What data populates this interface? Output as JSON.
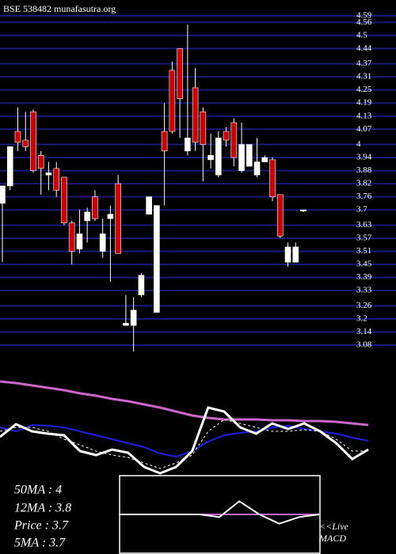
{
  "header": {
    "title": "BSE 538482 munafasutra.org"
  },
  "stats": [
    "50MA : 4",
    "12MA : 3.8",
    "Price : 3.7",
    "5MA : 3.7"
  ],
  "macd_label": [
    "<<Live",
    "MACD"
  ],
  "chart_data": [
    {
      "type": "candlestick",
      "up_color": "#ffffff",
      "down_color": "#cc0000",
      "grid": true,
      "grid_color": "#1a1a7a",
      "ylim": [
        3.08,
        4.59
      ],
      "yticks": [
        4.59,
        4.56,
        4.5,
        4.44,
        4.37,
        4.31,
        4.25,
        4.19,
        4.13,
        4.07,
        4,
        3.94,
        3.88,
        3.82,
        3.76,
        3.7,
        3.63,
        3.57,
        3.51,
        3.45,
        3.39,
        3.33,
        3.26,
        3.2,
        3.14,
        3.08
      ],
      "open": [
        3.73,
        3.81,
        4.06,
        4.02,
        4.15,
        3.95,
        3.86,
        3.89,
        3.85,
        3.64,
        3.52,
        3.65,
        3.76,
        3.51,
        3.66,
        3.82,
        3.17,
        3.17,
        3.31,
        3.68,
        3.23,
        4.06,
        4.34,
        4.44,
        3.97,
        4.26,
        4.15,
        3.93,
        3.86,
        4.06,
        4.1,
        3.88,
        3.9,
        3.86,
        3.92,
        3.93,
        3.77,
        3.46,
        3.46,
        3.7
      ],
      "high": [
        3.81,
        3.99,
        4.17,
        4.15,
        4.16,
        3.97,
        3.92,
        3.92,
        3.85,
        3.65,
        3.7,
        3.71,
        3.79,
        3.66,
        3.72,
        3.86,
        3.31,
        3.3,
        3.41,
        3.76,
        3.72,
        4.19,
        4.38,
        4.44,
        4.55,
        4.35,
        4.17,
        4.05,
        4.06,
        4.08,
        4.12,
        4.1,
        4.0,
        4.03,
        3.95,
        3.94,
        3.77,
        3.55,
        3.55,
        3.7
      ],
      "low": [
        3.46,
        3.79,
        3.97,
        3.97,
        3.87,
        3.77,
        3.79,
        3.76,
        3.63,
        3.45,
        3.5,
        3.55,
        3.65,
        3.48,
        3.37,
        3.5,
        3.17,
        3.05,
        3.3,
        3.68,
        3.23,
        3.72,
        4.05,
        4.03,
        3.95,
        3.97,
        3.83,
        3.89,
        3.85,
        3.99,
        3.9,
        3.87,
        3.9,
        3.85,
        3.92,
        3.74,
        3.57,
        3.44,
        3.46,
        3.69
      ],
      "close": [
        3.81,
        3.99,
        4.01,
        3.99,
        3.88,
        3.89,
        3.87,
        3.79,
        3.64,
        3.51,
        3.59,
        3.69,
        3.66,
        3.59,
        3.68,
        3.5,
        3.18,
        3.24,
        3.4,
        3.76,
        3.72,
        3.97,
        4.06,
        4.21,
        4.03,
        4.01,
        4.0,
        3.95,
        4.03,
        4.02,
        3.94,
        4.0,
        4.0,
        3.92,
        3.94,
        3.76,
        3.58,
        3.53,
        3.53,
        3.7
      ]
    },
    {
      "type": "line",
      "xlim": [
        0,
        460
      ],
      "ylim": [
        0,
        140
      ],
      "x": [
        0,
        20,
        40,
        60,
        80,
        100,
        120,
        140,
        160,
        180,
        200,
        220,
        240,
        260,
        280,
        300,
        320,
        340,
        360,
        380,
        400,
        420,
        440,
        460
      ],
      "series": [
        {
          "color": "#cc66cc",
          "width": 3,
          "values": [
            128,
            126,
            123,
            120,
            117,
            113,
            110,
            106,
            103,
            99,
            95,
            90,
            85,
            82,
            80,
            80,
            80,
            79,
            79,
            78,
            78,
            77,
            75,
            73
          ]
        },
        {
          "color": "#1e1ee6",
          "width": 2,
          "values": [
            70,
            65,
            73,
            72,
            70,
            65,
            60,
            55,
            50,
            45,
            37,
            33,
            40,
            52,
            60,
            63,
            65,
            70,
            72,
            68,
            65,
            62,
            57,
            53
          ]
        },
        {
          "color": "#ffffff",
          "width": 3,
          "values": [
            58,
            74,
            65,
            62,
            60,
            40,
            35,
            42,
            38,
            20,
            12,
            20,
            40,
            95,
            90,
            70,
            62,
            75,
            68,
            75,
            65,
            50,
            30,
            42
          ]
        },
        {
          "color": "#ffffff",
          "width": 1,
          "dashed": true,
          "values": [
            65,
            70,
            70,
            65,
            55,
            48,
            40,
            35,
            32,
            25,
            18,
            25,
            35,
            65,
            80,
            75,
            70,
            65,
            65,
            67,
            65,
            55,
            40,
            40
          ]
        }
      ]
    },
    {
      "type": "line",
      "xlim": [
        0,
        10
      ],
      "ylim": [
        -30,
        30
      ],
      "x": [
        0,
        1,
        2,
        3,
        4,
        5,
        6,
        7,
        8,
        9,
        10
      ],
      "series": [
        {
          "color": "#cc66cc",
          "width": 2,
          "values": [
            0,
            0,
            0,
            0,
            0,
            0,
            0,
            0,
            0,
            0,
            0
          ]
        },
        {
          "color": "#ffffff",
          "width": 2,
          "values": [
            0,
            0,
            0,
            0,
            0,
            -2,
            10,
            0,
            -7,
            -2,
            0
          ]
        }
      ]
    }
  ]
}
